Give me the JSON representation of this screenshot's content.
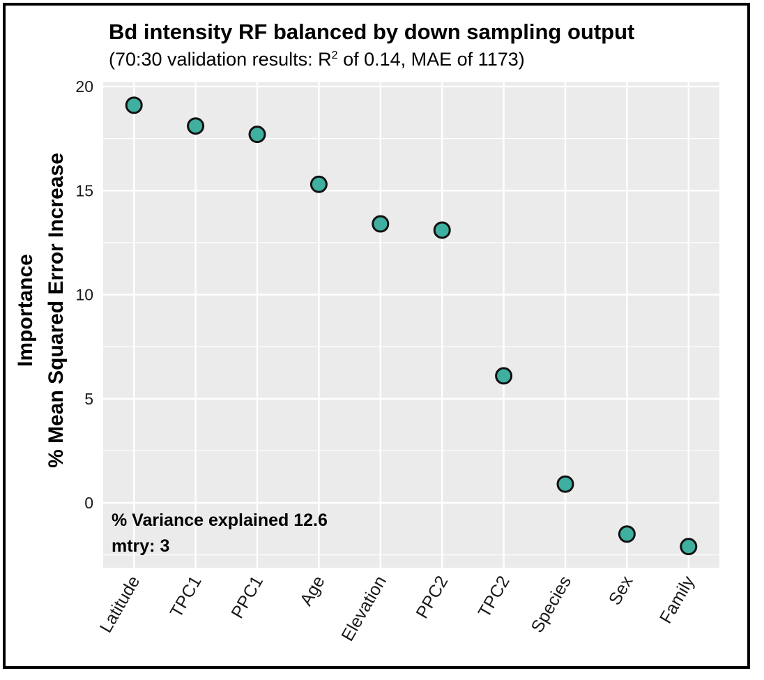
{
  "chart_data": {
    "type": "scatter",
    "title": "Bd intensity RF balanced by down sampling output",
    "subtitle": {
      "prefix": "(70:30 validation results: R",
      "superscript": "2",
      "suffix": " of 0.14, MAE of 1173)"
    },
    "ylabel_line1": "Importance",
    "ylabel_line2": "% Mean Squared Error Increase",
    "xlabel": "",
    "categories": [
      "Latitude",
      "TPC1",
      "PPC1",
      "Age",
      "Elevation",
      "PPC2",
      "TPC2",
      "Species",
      "Sex",
      "Family"
    ],
    "values": [
      19.1,
      18.1,
      17.7,
      15.3,
      13.4,
      13.1,
      6.1,
      0.9,
      -1.5,
      -2.1
    ],
    "ylim": [
      -3.2,
      20
    ],
    "yticks": [
      0,
      5,
      10,
      15,
      20
    ],
    "grid": true,
    "point_color": "#3fb0a0",
    "panel_color": "#ebebeb",
    "annotations": [
      "% Variance explained 12.6",
      "mtry: 3"
    ]
  }
}
